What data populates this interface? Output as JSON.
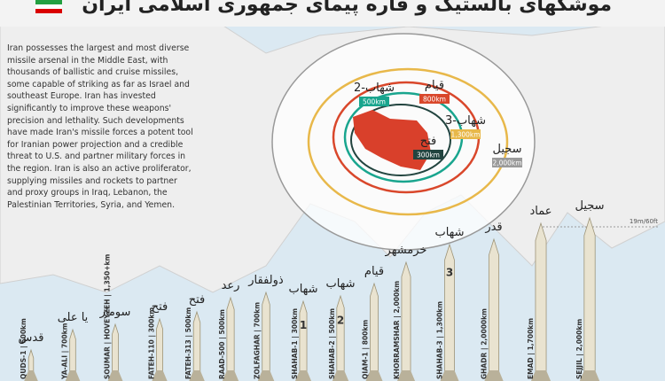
{
  "header": {
    "title": "موشکهای بالستیک و قاره پیمای جمهوری اسلامی ایران"
  },
  "intro": "Iran possesses the largest and most diverse missile arsenal in the Middle East, with thousands of ballistic and cruise missiles, some capable of striking as far as Israel and southeast Europe. Iran has invested significantly to improve these weapons' precision and lethality. Such developments have made Iran's missile forces a potent tool for Iranian power projection and a credible threat to U.S. and partner military forces in the region. Iran is also an active proliferator, supplying missiles and rockets to partner and proxy groups in Iraq, Lebanon, the Palestinian Territories, Syria, and Yemen.",
  "scale_label": "19m/60ft",
  "ranges": [
    {
      "name": "فتح",
      "range": "300km"
    },
    {
      "name": "شهاب-2",
      "range": "500km"
    },
    {
      "name": "قیام",
      "range": "800km"
    },
    {
      "name": "شهاب-3",
      "range": "1,300km"
    },
    {
      "name": "سجیل",
      "range": "2,000km"
    }
  ],
  "missiles": [
    {
      "name": "قدس",
      "label": "QUDS-1 | 600km"
    },
    {
      "name": "یا علی",
      "label": "YA-ALI | 700km"
    },
    {
      "name": "سومار",
      "label": "SOUMAR | HOVEYZEH | 1,350+km"
    },
    {
      "name": "فتح",
      "label": "FATEH-110 | 300km"
    },
    {
      "name": "فتح",
      "label": "FATEH-313 | 500km"
    },
    {
      "name": "رعد",
      "label": "RAAD-500 | 500km"
    },
    {
      "name": "ذولفقار",
      "label": "ZOLFAGHAR | 700km"
    },
    {
      "name": "شهاب",
      "label": "SHAHAB-1 | 300km",
      "marker": "1"
    },
    {
      "name": "شهاب",
      "label": "SHAHAB-2 | 500km",
      "marker": "2"
    },
    {
      "name": "قیام",
      "label": "QIAM-1 | 800km"
    },
    {
      "name": "خرمشهر",
      "label": "KHORRAMSHAR | 2,000km"
    },
    {
      "name": "شهاب",
      "label": "SHAHAB-3 | 1,300km",
      "marker": "3"
    },
    {
      "name": "قدر",
      "label": "GHADR | 2,0000km"
    },
    {
      "name": "عماد",
      "label": "EMAD | 1,700km"
    },
    {
      "name": "سجیل",
      "label": "SEJJIL | 2,000km"
    }
  ]
}
